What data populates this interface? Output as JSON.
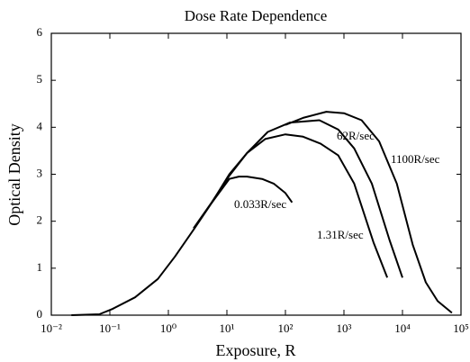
{
  "chart_data": {
    "type": "line",
    "title": "Dose Rate Dependence",
    "x_label": "Exposure,  R",
    "y_label": "Optical Density",
    "xscale": "log",
    "xlim": [
      0.01,
      100000
    ],
    "ylim": [
      0,
      6
    ],
    "xticks": [
      {
        "value": 0.01,
        "label": "10⁻²"
      },
      {
        "value": 0.1,
        "label": "10⁻¹"
      },
      {
        "value": 1,
        "label": "10⁰"
      },
      {
        "value": 10,
        "label": "10¹"
      },
      {
        "value": 100,
        "label": "10²"
      },
      {
        "value": 1000,
        "label": "10³"
      },
      {
        "value": 10000,
        "label": "10⁴"
      },
      {
        "value": 100000,
        "label": "10⁵"
      }
    ],
    "yticks": [
      0,
      1,
      2,
      3,
      4,
      5,
      6
    ],
    "series": [
      {
        "name": "0.033R/sec",
        "color": "#000000",
        "x": [
          0.022,
          0.066,
          0.11,
          0.27,
          0.66,
          1.3,
          2.7,
          5.5,
          11,
          16,
          22,
          40,
          63,
          100,
          130
        ],
        "values": [
          0,
          0.02,
          0.13,
          0.38,
          0.77,
          1.25,
          1.82,
          2.39,
          2.9,
          2.95,
          2.95,
          2.9,
          2.8,
          2.6,
          2.4
        ]
      },
      {
        "name": "1.31R/sec",
        "color": "#000000",
        "x": [
          5.5,
          11,
          22,
          45,
          100,
          200,
          400,
          800,
          1500,
          3200,
          5500
        ],
        "values": [
          2.39,
          3.0,
          3.45,
          3.75,
          3.85,
          3.8,
          3.65,
          3.4,
          2.8,
          1.55,
          0.8
        ]
      },
      {
        "name": "62R/sec",
        "color": "#000000",
        "x": [
          2.7,
          5.5,
          11,
          22,
          50,
          120,
          380,
          800,
          1500,
          3000,
          6000,
          10000
        ],
        "values": [
          1.85,
          2.4,
          2.97,
          3.45,
          3.9,
          4.1,
          4.15,
          3.95,
          3.55,
          2.8,
          1.6,
          0.8
        ]
      },
      {
        "name": "1100R/sec",
        "color": "#000000",
        "x": [
          100,
          200,
          500,
          1000,
          2000,
          4000,
          8000,
          15000,
          25000,
          40000,
          70000
        ],
        "values": [
          4.05,
          4.2,
          4.33,
          4.3,
          4.15,
          3.7,
          2.8,
          1.5,
          0.7,
          0.3,
          0.05
        ]
      }
    ]
  }
}
